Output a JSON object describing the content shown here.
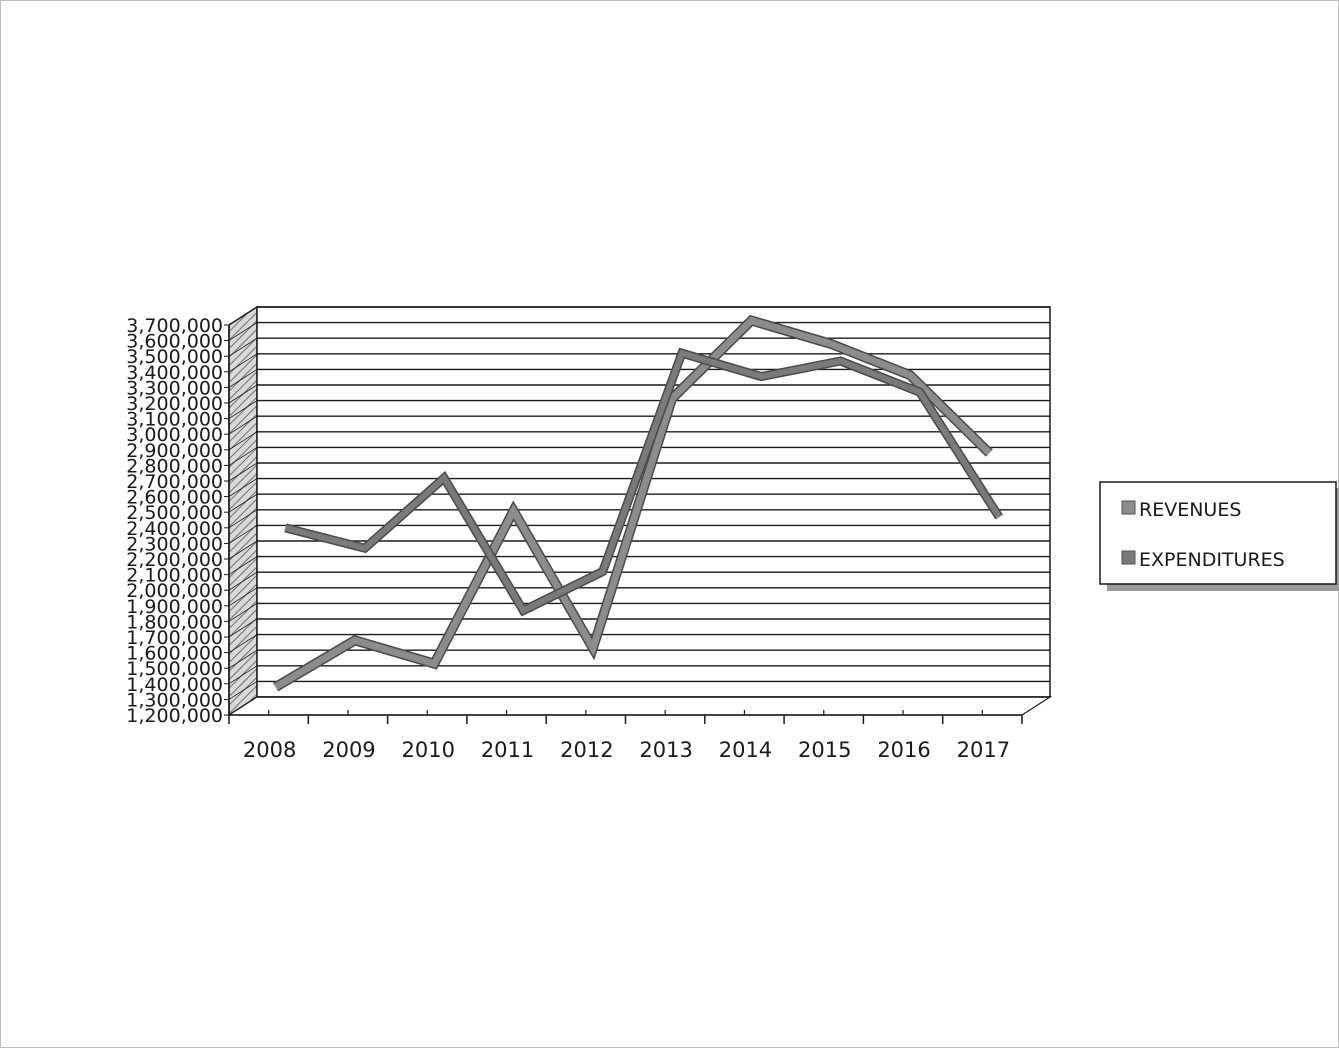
{
  "chart_data": {
    "type": "line",
    "title": "",
    "xlabel": "",
    "ylabel": "",
    "categories": [
      "2008",
      "2009",
      "2010",
      "2011",
      "2012",
      "2013",
      "2014",
      "2015",
      "2016",
      "2017"
    ],
    "series": [
      {
        "name": "REVENUES",
        "color": "#8c8c8c",
        "values": [
          1350000,
          1650000,
          1500000,
          2480000,
          1600000,
          3200000,
          3700000,
          3550000,
          3350000,
          2850000
        ]
      },
      {
        "name": "EXPENDITURES",
        "color": "#7a7a7a",
        "values": [
          2330000,
          2200000,
          2650000,
          1800000,
          2050000,
          3450000,
          3300000,
          3400000,
          3200000,
          2400000
        ]
      }
    ],
    "ylim": [
      1200000,
      3700000
    ],
    "y_ticks": [
      "1,200,000",
      "1,300,000",
      "1,400,000",
      "1,500,000",
      "1,600,000",
      "1,700,000",
      "1,800,000",
      "1,900,000",
      "2,000,000",
      "2,100,000",
      "2,200,000",
      "2,300,000",
      "2,400,000",
      "2,500,000",
      "2,600,000",
      "2,700,000",
      "2,800,000",
      "2,900,000",
      "3,000,000",
      "3,100,000",
      "3,200,000",
      "3,300,000",
      "3,400,000",
      "3,500,000",
      "3,600,000",
      "3,700,000"
    ],
    "grid": true,
    "legend": "right"
  }
}
